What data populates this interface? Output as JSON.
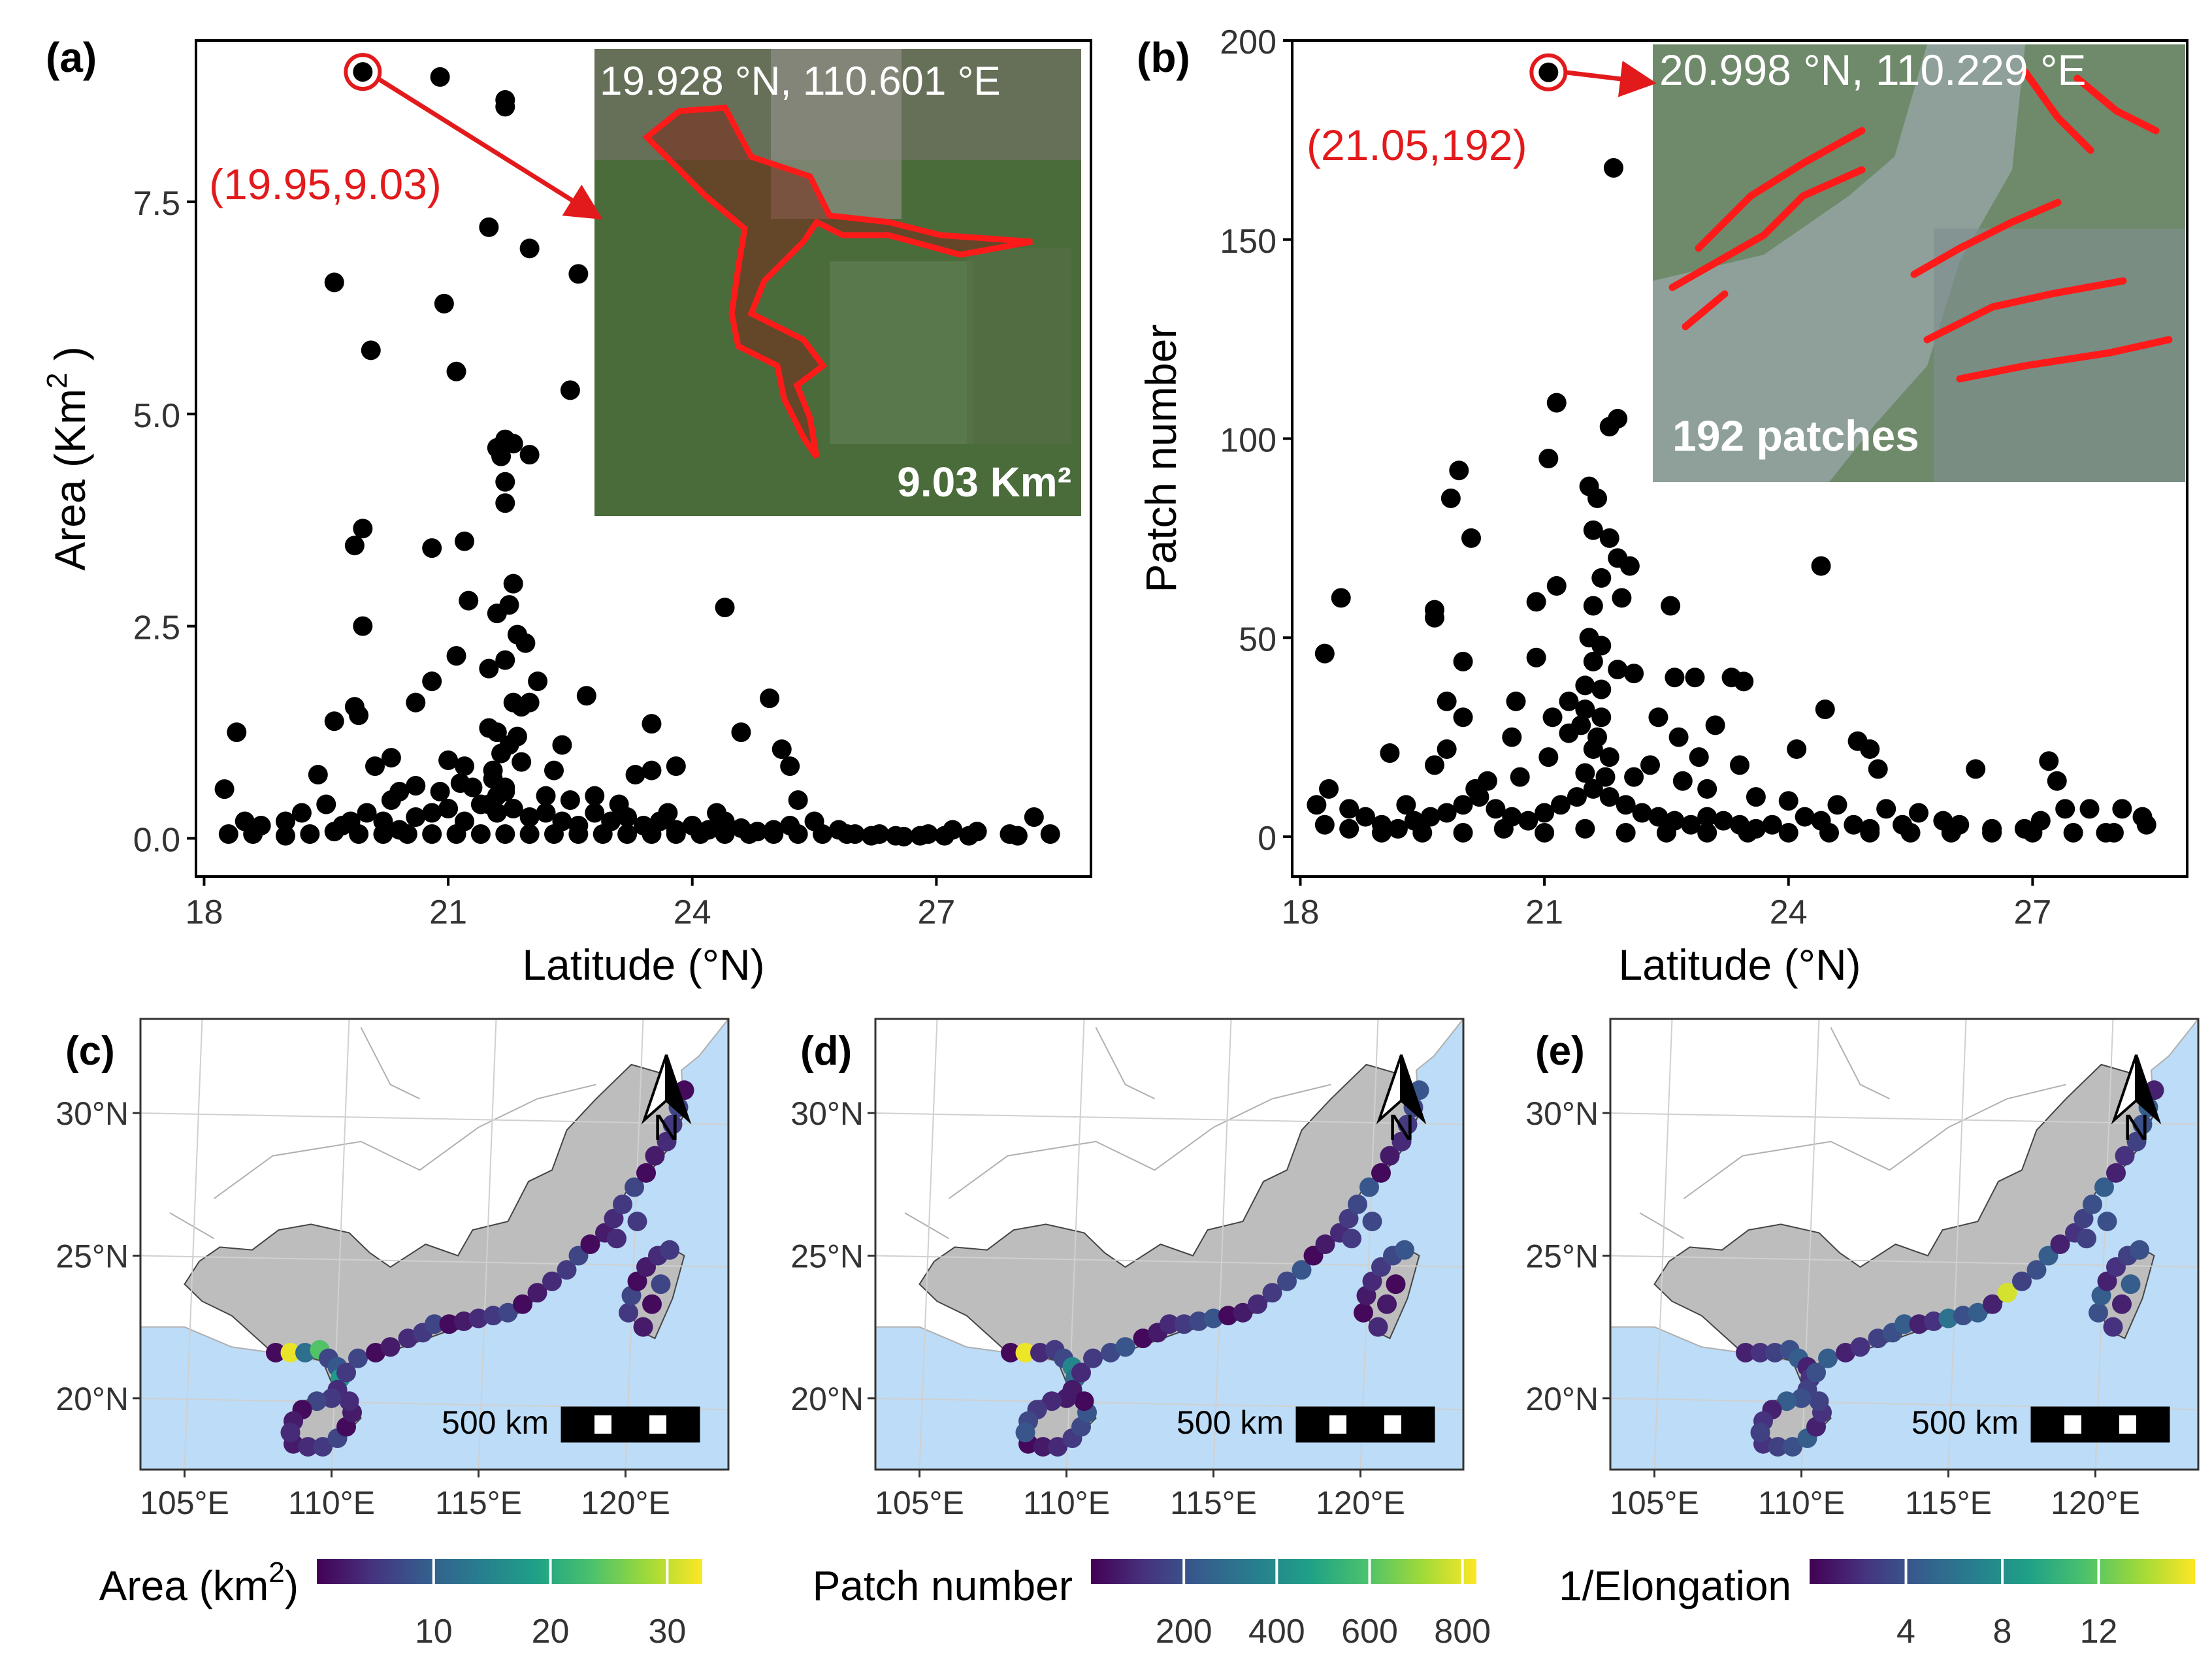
{
  "colors": {
    "point": "#000000",
    "highlight": "#e31a1c",
    "sea": "#bcdcf7",
    "land_gray": "#bdbdbd",
    "border": "#b0b0b0",
    "viridis": [
      "#440154",
      "#46327e",
      "#365c8d",
      "#277f8e",
      "#1fa187",
      "#4ac16d",
      "#a0da39",
      "#fde725"
    ]
  },
  "chart_data": [
    {
      "panel": "(a)",
      "type": "scatter",
      "xlabel": "Latitude (°N)",
      "ylabel": "Area (Km",
      "ylabel_sup": "2",
      "ylabel_tail": " )",
      "xlim": [
        17.9,
        28.9
      ],
      "ylim": [
        -0.45,
        9.4
      ],
      "xticks": [
        "18",
        "21",
        "24",
        "27"
      ],
      "xtick_values": [
        18,
        21,
        24,
        27
      ],
      "yticks": [
        "0.0",
        "2.5",
        "5.0",
        "7.5"
      ],
      "ytick_values": [
        0,
        2.5,
        5,
        7.5
      ],
      "highlight_label": "(19.95,9.03)",
      "highlight_point": [
        19.95,
        9.03
      ],
      "inset": {
        "coords": "19.928 °N, 110.601 °E",
        "caption": "9.03 Km²"
      },
      "points": [
        [
          20.9,
          8.97
        ],
        [
          21.7,
          8.7
        ],
        [
          21.7,
          8.62
        ],
        [
          21.5,
          7.2
        ],
        [
          22.0,
          6.95
        ],
        [
          22.6,
          6.65
        ],
        [
          19.6,
          6.55
        ],
        [
          20.95,
          6.3
        ],
        [
          21.1,
          5.5
        ],
        [
          20.05,
          5.75
        ],
        [
          22.5,
          5.28
        ],
        [
          21.6,
          4.6
        ],
        [
          21.7,
          4.7
        ],
        [
          21.8,
          4.65
        ],
        [
          21.65,
          4.5
        ],
        [
          22.0,
          4.52
        ],
        [
          21.7,
          4.2
        ],
        [
          21.7,
          3.95
        ],
        [
          19.95,
          3.65
        ],
        [
          19.85,
          3.45
        ],
        [
          20.8,
          3.42
        ],
        [
          21.2,
          3.5
        ],
        [
          21.8,
          3.0
        ],
        [
          21.75,
          2.75
        ],
        [
          21.6,
          2.65
        ],
        [
          21.25,
          2.8
        ],
        [
          24.4,
          2.72
        ],
        [
          19.95,
          2.5
        ],
        [
          21.85,
          2.4
        ],
        [
          21.95,
          2.3
        ],
        [
          21.1,
          2.15
        ],
        [
          21.5,
          2.0
        ],
        [
          21.7,
          2.1
        ],
        [
          22.1,
          1.85
        ],
        [
          20.8,
          1.85
        ],
        [
          22.7,
          1.68
        ],
        [
          24.95,
          1.65
        ],
        [
          19.85,
          1.55
        ],
        [
          20.6,
          1.6
        ],
        [
          21.8,
          1.6
        ],
        [
          21.9,
          1.55
        ],
        [
          22.0,
          1.6
        ],
        [
          19.6,
          1.38
        ],
        [
          19.9,
          1.45
        ],
        [
          23.5,
          1.35
        ],
        [
          24.6,
          1.25
        ],
        [
          18.4,
          1.25
        ],
        [
          21.5,
          1.3
        ],
        [
          21.6,
          1.25
        ],
        [
          25.1,
          1.05
        ],
        [
          25.2,
          0.85
        ],
        [
          22.4,
          1.1
        ],
        [
          20.3,
          0.95
        ],
        [
          21.0,
          0.92
        ],
        [
          21.2,
          0.85
        ],
        [
          23.8,
          0.85
        ],
        [
          23.3,
          0.75
        ],
        [
          23.5,
          0.8
        ],
        [
          19.4,
          0.75
        ],
        [
          20.1,
          0.85
        ],
        [
          20.6,
          0.62
        ],
        [
          20.4,
          0.55
        ],
        [
          21.3,
          0.6
        ],
        [
          21.7,
          0.55
        ],
        [
          22.2,
          0.5
        ],
        [
          22.8,
          0.5
        ],
        [
          25.3,
          0.45
        ],
        [
          18.25,
          0.58
        ],
        [
          18.5,
          0.2
        ],
        [
          18.7,
          0.15
        ],
        [
          19.0,
          0.2
        ],
        [
          19.2,
          0.3
        ],
        [
          19.5,
          0.4
        ],
        [
          19.7,
          0.15
        ],
        [
          20.0,
          0.3
        ],
        [
          20.2,
          0.2
        ],
        [
          20.4,
          0.1
        ],
        [
          20.6,
          0.25
        ],
        [
          20.8,
          0.3
        ],
        [
          21.0,
          0.35
        ],
        [
          21.2,
          0.2
        ],
        [
          21.4,
          0.4
        ],
        [
          21.6,
          0.3
        ],
        [
          21.8,
          0.35
        ],
        [
          22.0,
          0.25
        ],
        [
          22.2,
          0.3
        ],
        [
          22.4,
          0.2
        ],
        [
          22.6,
          0.15
        ],
        [
          22.8,
          0.3
        ],
        [
          23.0,
          0.2
        ],
        [
          23.2,
          0.25
        ],
        [
          23.4,
          0.15
        ],
        [
          23.6,
          0.2
        ],
        [
          23.8,
          0.1
        ],
        [
          24.0,
          0.15
        ],
        [
          24.2,
          0.1
        ],
        [
          24.4,
          0.2
        ],
        [
          24.6,
          0.12
        ],
        [
          24.8,
          0.08
        ],
        [
          25.0,
          0.1
        ],
        [
          25.2,
          0.15
        ],
        [
          25.5,
          0.2
        ],
        [
          25.8,
          0.1
        ],
        [
          26.0,
          0.05
        ],
        [
          26.3,
          0.05
        ],
        [
          26.6,
          0.02
        ],
        [
          26.9,
          0.05
        ],
        [
          27.2,
          0.1
        ],
        [
          27.5,
          0.08
        ],
        [
          27.9,
          0.05
        ],
        [
          28.2,
          0.25
        ],
        [
          28.4,
          0.05
        ],
        [
          18.3,
          0.05
        ],
        [
          18.6,
          0.05
        ],
        [
          19.0,
          0.03
        ],
        [
          19.3,
          0.05
        ],
        [
          19.6,
          0.08
        ],
        [
          19.9,
          0.05
        ],
        [
          20.2,
          0.05
        ],
        [
          20.5,
          0.05
        ],
        [
          20.8,
          0.05
        ],
        [
          21.1,
          0.05
        ],
        [
          21.4,
          0.05
        ],
        [
          21.7,
          0.05
        ],
        [
          22.0,
          0.05
        ],
        [
          22.3,
          0.05
        ],
        [
          22.6,
          0.05
        ],
        [
          22.9,
          0.05
        ],
        [
          23.2,
          0.05
        ],
        [
          23.5,
          0.05
        ],
        [
          23.8,
          0.05
        ],
        [
          24.1,
          0.05
        ],
        [
          24.4,
          0.05
        ],
        [
          24.7,
          0.05
        ],
        [
          25.0,
          0.05
        ],
        [
          25.3,
          0.05
        ],
        [
          25.6,
          0.05
        ],
        [
          25.9,
          0.05
        ],
        [
          26.2,
          0.03
        ],
        [
          26.5,
          0.03
        ],
        [
          26.8,
          0.03
        ],
        [
          27.1,
          0.03
        ],
        [
          27.4,
          0.03
        ],
        [
          28.0,
          0.03
        ],
        [
          21.55,
          0.8
        ],
        [
          21.65,
          1.0
        ],
        [
          21.75,
          1.1
        ],
        [
          21.85,
          1.2
        ],
        [
          21.55,
          0.7
        ],
        [
          21.7,
          0.6
        ],
        [
          21.9,
          0.9
        ],
        [
          21.6,
          0.5
        ],
        [
          21.5,
          0.4
        ],
        [
          20.9,
          0.55
        ],
        [
          21.15,
          0.65
        ],
        [
          22.3,
          0.8
        ],
        [
          22.5,
          0.45
        ],
        [
          23.1,
          0.4
        ],
        [
          23.7,
          0.3
        ],
        [
          24.3,
          0.3
        ],
        [
          20.3,
          0.45
        ],
        [
          19.8,
          0.2
        ]
      ]
    },
    {
      "panel": "(b)",
      "type": "scatter",
      "xlabel": "Latitude (°N)",
      "ylabel": "Patch number",
      "xlim": [
        17.9,
        28.9
      ],
      "ylim": [
        -10,
        200
      ],
      "xticks": [
        "18",
        "21",
        "24",
        "27"
      ],
      "xtick_values": [
        18,
        21,
        24,
        27
      ],
      "yticks": [
        "0",
        "50",
        "100",
        "150",
        "200"
      ],
      "ytick_values": [
        0,
        50,
        100,
        150,
        200
      ],
      "highlight_label": "(21.05,192)",
      "highlight_point": [
        21.05,
        192
      ],
      "inset": {
        "coords": "20.998 °N, 110.229 °E",
        "caption": "192 patches"
      },
      "points": [
        [
          21.85,
          168
        ],
        [
          21.9,
          105
        ],
        [
          21.8,
          103
        ],
        [
          21.15,
          109
        ],
        [
          21.05,
          95
        ],
        [
          19.95,
          92
        ],
        [
          19.85,
          85
        ],
        [
          20.1,
          75
        ],
        [
          21.55,
          88
        ],
        [
          21.65,
          85
        ],
        [
          21.6,
          77
        ],
        [
          21.8,
          75
        ],
        [
          21.9,
          70
        ],
        [
          22.05,
          68
        ],
        [
          24.4,
          68
        ],
        [
          21.7,
          65
        ],
        [
          21.6,
          58
        ],
        [
          21.95,
          60
        ],
        [
          21.15,
          63
        ],
        [
          19.65,
          57
        ],
        [
          19.65,
          55
        ],
        [
          20.9,
          59
        ],
        [
          22.55,
          58
        ],
        [
          18.5,
          60
        ],
        [
          18.3,
          46
        ],
        [
          20.0,
          44
        ],
        [
          20.9,
          45
        ],
        [
          21.6,
          44
        ],
        [
          21.9,
          42
        ],
        [
          22.1,
          41
        ],
        [
          22.6,
          40
        ],
        [
          22.85,
          40
        ],
        [
          23.3,
          40
        ],
        [
          23.45,
          39
        ],
        [
          21.5,
          38
        ],
        [
          21.7,
          37
        ],
        [
          24.45,
          32
        ],
        [
          21.3,
          34
        ],
        [
          20.65,
          34
        ],
        [
          19.8,
          34
        ],
        [
          20.0,
          30
        ],
        [
          21.1,
          30
        ],
        [
          21.5,
          32
        ],
        [
          21.7,
          30
        ],
        [
          21.3,
          26
        ],
        [
          21.05,
          20
        ],
        [
          20.6,
          25
        ],
        [
          22.65,
          25
        ],
        [
          22.9,
          20
        ],
        [
          24.85,
          24
        ],
        [
          25.0,
          22
        ],
        [
          24.1,
          22
        ],
        [
          23.4,
          18
        ],
        [
          25.1,
          17
        ],
        [
          26.3,
          17
        ],
        [
          27.2,
          19
        ],
        [
          27.3,
          14
        ],
        [
          19.65,
          18
        ],
        [
          19.1,
          21
        ],
        [
          19.8,
          22
        ],
        [
          21.6,
          22
        ],
        [
          21.8,
          20
        ],
        [
          22.3,
          18
        ],
        [
          22.1,
          15
        ],
        [
          22.7,
          14
        ],
        [
          23.0,
          12
        ],
        [
          23.6,
          10
        ],
        [
          24.0,
          9
        ],
        [
          24.6,
          8
        ],
        [
          25.2,
          7
        ],
        [
          25.6,
          6
        ],
        [
          25.9,
          4
        ],
        [
          26.1,
          3
        ],
        [
          26.5,
          2
        ],
        [
          26.9,
          2
        ],
        [
          27.1,
          4
        ],
        [
          27.4,
          7
        ],
        [
          27.7,
          7
        ],
        [
          28.1,
          7
        ],
        [
          28.35,
          5
        ],
        [
          28.4,
          3
        ],
        [
          27.9,
          1
        ],
        [
          18.2,
          8
        ],
        [
          18.35,
          12
        ],
        [
          18.6,
          7
        ],
        [
          18.8,
          5
        ],
        [
          19.0,
          3
        ],
        [
          19.2,
          2
        ],
        [
          19.4,
          4
        ],
        [
          19.6,
          5
        ],
        [
          19.8,
          6
        ],
        [
          20.0,
          8
        ],
        [
          20.2,
          10
        ],
        [
          20.4,
          7
        ],
        [
          20.6,
          5
        ],
        [
          20.8,
          4
        ],
        [
          21.0,
          6
        ],
        [
          21.2,
          8
        ],
        [
          21.4,
          10
        ],
        [
          21.6,
          12
        ],
        [
          21.8,
          10
        ],
        [
          22.0,
          8
        ],
        [
          22.2,
          6
        ],
        [
          22.4,
          5
        ],
        [
          22.6,
          4
        ],
        [
          22.8,
          3
        ],
        [
          23.0,
          5
        ],
        [
          23.2,
          4
        ],
        [
          23.4,
          3
        ],
        [
          23.6,
          2
        ],
        [
          23.8,
          3
        ],
        [
          24.2,
          5
        ],
        [
          24.4,
          4
        ],
        [
          24.8,
          3
        ],
        [
          25.0,
          2
        ],
        [
          25.4,
          3
        ],
        [
          18.3,
          3
        ],
        [
          18.6,
          2
        ],
        [
          19.0,
          1
        ],
        [
          19.5,
          1
        ],
        [
          20.0,
          1
        ],
        [
          20.5,
          2
        ],
        [
          21.0,
          1
        ],
        [
          21.5,
          2
        ],
        [
          22.0,
          1
        ],
        [
          22.5,
          1
        ],
        [
          23.0,
          1
        ],
        [
          23.5,
          1
        ],
        [
          24.0,
          1
        ],
        [
          24.5,
          1
        ],
        [
          25.0,
          1
        ],
        [
          25.5,
          1
        ],
        [
          26.0,
          1
        ],
        [
          26.5,
          1
        ],
        [
          27.0,
          1
        ],
        [
          27.5,
          1
        ],
        [
          28.0,
          1
        ],
        [
          21.55,
          50
        ],
        [
          21.7,
          48
        ],
        [
          21.45,
          28
        ],
        [
          21.65,
          25
        ],
        [
          21.75,
          15
        ],
        [
          21.5,
          16
        ],
        [
          20.7,
          15
        ],
        [
          20.3,
          14
        ],
        [
          22.4,
          30
        ],
        [
          23.1,
          28
        ],
        [
          20.15,
          12
        ],
        [
          19.3,
          8
        ]
      ]
    }
  ],
  "maps": [
    {
      "panel": "(c)",
      "legend_title": "Area (km",
      "legend_title_sup": "2",
      "legend_title_tail": ")",
      "legend_ticks": [
        "10",
        "20",
        "30"
      ],
      "legend_tick_values": [
        10,
        20,
        30
      ],
      "legend_range": [
        0,
        33
      ],
      "scalebar": "500 km",
      "north": "N",
      "lat_labels": [
        "30°N",
        "25°N",
        "20°N"
      ],
      "lon_labels": [
        "105°E",
        "110°E",
        "115°E",
        "120°E"
      ]
    },
    {
      "panel": "(d)",
      "legend_title": "Patch number",
      "legend_ticks": [
        "200",
        "400",
        "600",
        "800"
      ],
      "legend_tick_values": [
        200,
        400,
        600,
        800
      ],
      "legend_range": [
        0,
        830
      ],
      "scalebar": "500 km",
      "north": "N",
      "lat_labels": [
        "30°N",
        "25°N",
        "20°N"
      ],
      "lon_labels": [
        "105°E",
        "110°E",
        "115°E",
        "120°E"
      ]
    },
    {
      "panel": "(e)",
      "legend_title": "1/Elongation",
      "legend_ticks": [
        "4",
        "8",
        "12"
      ],
      "legend_tick_values": [
        4,
        8,
        12
      ],
      "legend_range": [
        0,
        16
      ],
      "scalebar": "500 km",
      "north": "N",
      "lat_labels": [
        "30°N",
        "25°N",
        "20°N"
      ],
      "lon_labels": [
        "105°E",
        "110°E",
        "115°E",
        "120°E"
      ]
    }
  ]
}
